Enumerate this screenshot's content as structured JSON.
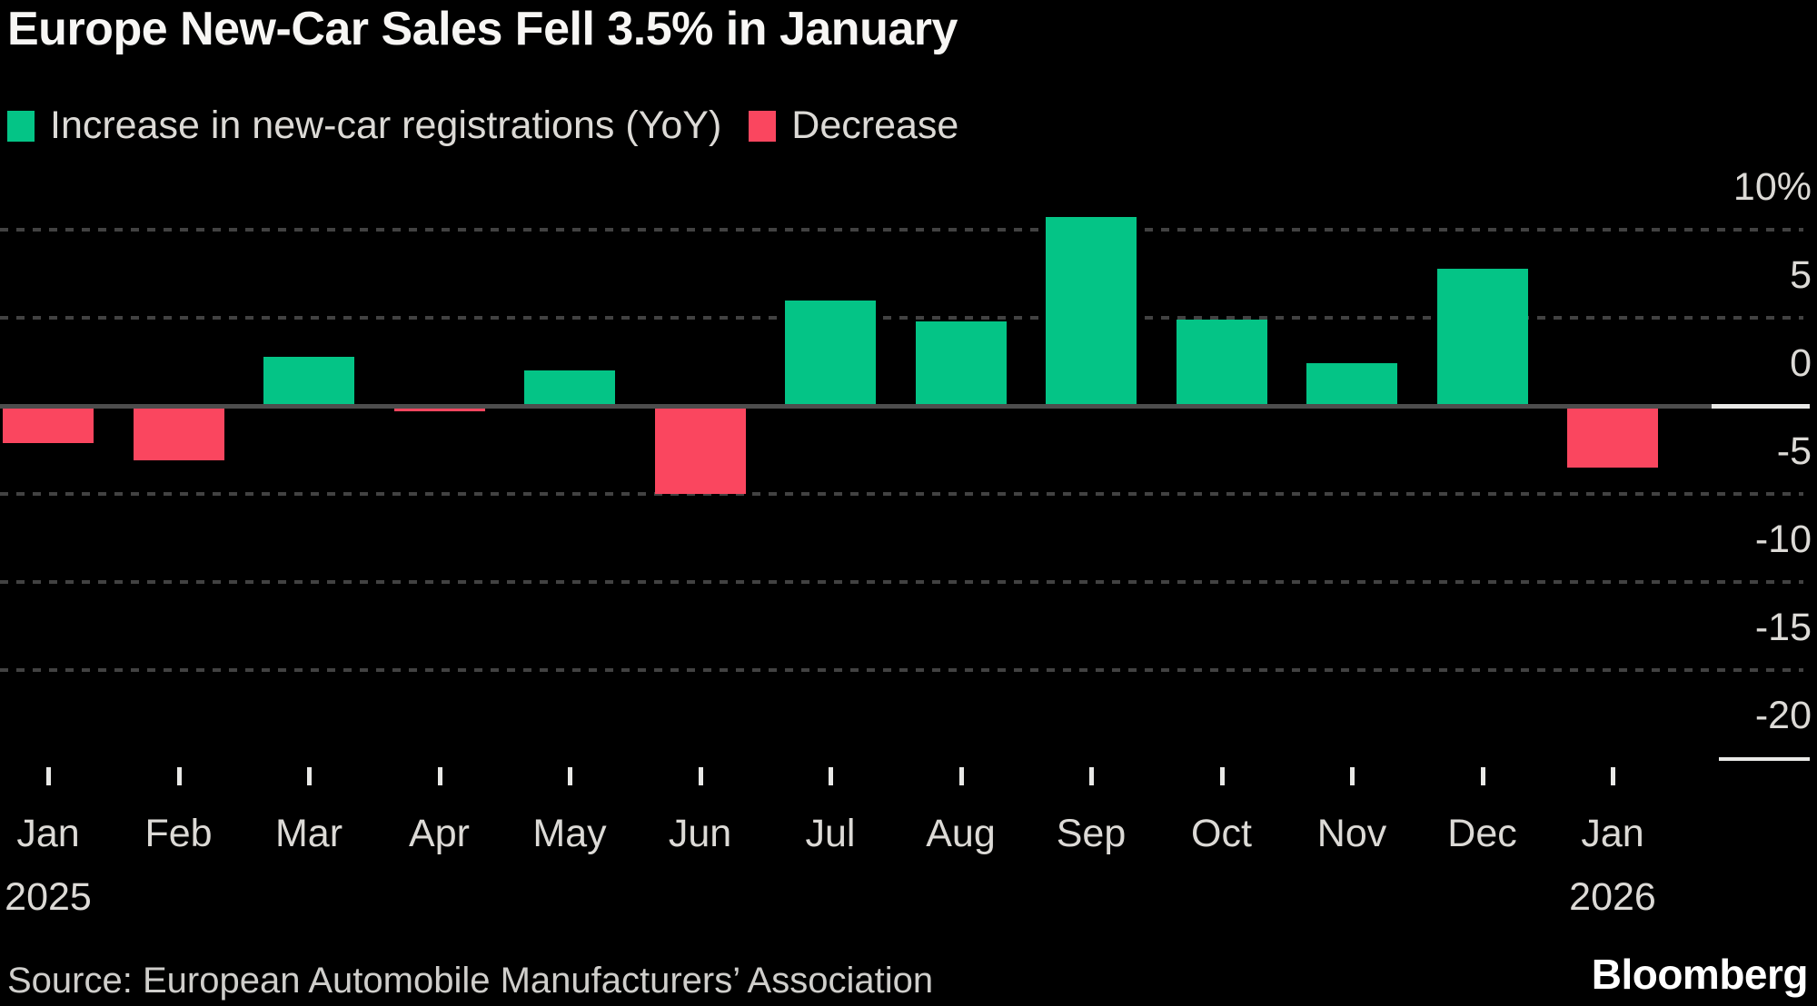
{
  "title": "Europe New-Car Sales Fell 3.5% in January",
  "legend": [
    {
      "key": "increase",
      "label": "Increase in new-car registrations (YoY)",
      "color": "#04c486"
    },
    {
      "key": "decrease",
      "label": "Decrease",
      "color": "#fa465f"
    }
  ],
  "source": "Source: European Automobile Manufacturers’ Association",
  "brand": "Bloomberg",
  "colors": {
    "background": "#000000",
    "increase": "#04c486",
    "decrease": "#fa465f",
    "gridline": "#424242",
    "zero_line": "#4d4d4d",
    "axis_white": "#e9e9e7",
    "axis_text": "#dcdad6",
    "title_text": "#f7f6f4",
    "source_text": "#cfcecb"
  },
  "chart_data": {
    "type": "bar",
    "title": "Europe New-Car Sales Fell 3.5% in January",
    "categories": [
      "Jan",
      "Feb",
      "Mar",
      "Apr",
      "May",
      "Jun",
      "Jul",
      "Aug",
      "Sep",
      "Oct",
      "Nov",
      "Dec",
      "Jan"
    ],
    "year_labels": [
      {
        "index": 0,
        "label": "2025"
      },
      {
        "index": 12,
        "label": "2026"
      }
    ],
    "values": [
      -2.1,
      -3.1,
      2.8,
      -0.3,
      2.0,
      -5.0,
      6.0,
      4.8,
      10.7,
      4.9,
      2.4,
      7.8,
      -3.5
    ],
    "series_name": "New-car registrations YoY %",
    "xlabel": "",
    "ylabel": "%",
    "ylim": [
      -23,
      11.5
    ],
    "yticks": [
      {
        "value": 10,
        "label": "10%",
        "line": "dashed"
      },
      {
        "value": 5,
        "label": "5",
        "line": "dashed"
      },
      {
        "value": 0,
        "label": "0",
        "line": "solid"
      },
      {
        "value": -5,
        "label": "-5",
        "line": "dashed"
      },
      {
        "value": -10,
        "label": "-10",
        "line": "dashed"
      },
      {
        "value": -15,
        "label": "-15",
        "line": "dashed"
      },
      {
        "value": -20,
        "label": "-20",
        "line": "none"
      }
    ],
    "grid": "horizontal-dashed",
    "legend_position": "top-left",
    "positive_color": "#04c486",
    "negative_color": "#fa465f"
  }
}
